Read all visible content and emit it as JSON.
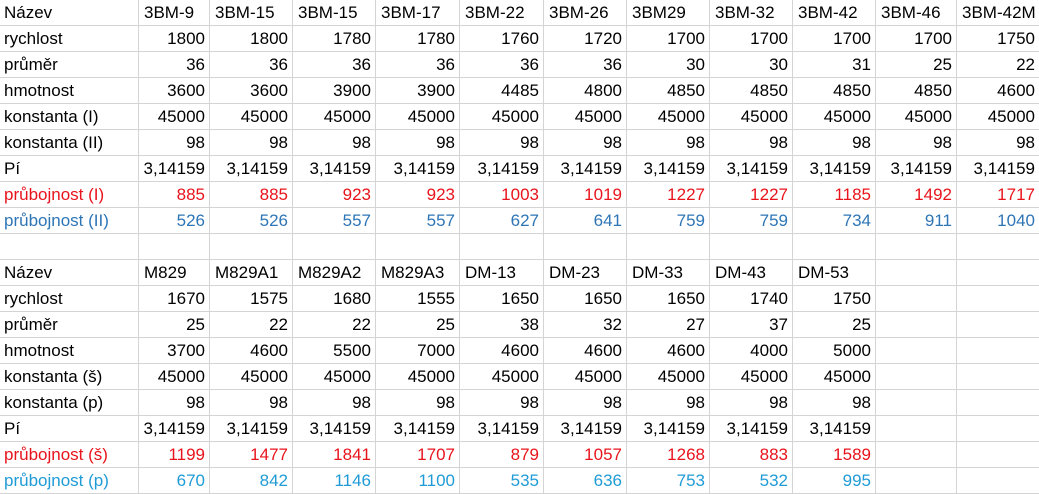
{
  "table1": {
    "header_label": "Název",
    "columns": [
      "3BM-9",
      "3BM-15",
      "3BM-15",
      "3BM-17",
      "3BM-22",
      "3BM-26",
      "3BM29",
      "3BM-32",
      "3BM-42",
      "3BM-46",
      "3BM-42M"
    ],
    "rows": [
      {
        "label": "rychlost",
        "values": [
          "1800",
          "1800",
          "1780",
          "1780",
          "1760",
          "1720",
          "1700",
          "1700",
          "1700",
          "1700",
          "1750"
        ],
        "style": "normal"
      },
      {
        "label": "průměr",
        "values": [
          "36",
          "36",
          "36",
          "36",
          "36",
          "36",
          "30",
          "30",
          "31",
          "25",
          "22"
        ],
        "style": "normal"
      },
      {
        "label": "hmotnost",
        "values": [
          "3600",
          "3600",
          "3900",
          "3900",
          "4485",
          "4800",
          "4850",
          "4850",
          "4850",
          "4850",
          "4600"
        ],
        "style": "normal"
      },
      {
        "label": "konstanta (I)",
        "values": [
          "45000",
          "45000",
          "45000",
          "45000",
          "45000",
          "45000",
          "45000",
          "45000",
          "45000",
          "45000",
          "45000"
        ],
        "style": "normal"
      },
      {
        "label": "konstanta (II)",
        "values": [
          "98",
          "98",
          "98",
          "98",
          "98",
          "98",
          "98",
          "98",
          "98",
          "98",
          "98"
        ],
        "style": "normal"
      },
      {
        "label": "Pí",
        "values": [
          "3,14159",
          "3,14159",
          "3,14159",
          "3,14159",
          "3,14159",
          "3,14159",
          "3,14159",
          "3,14159",
          "3,14159",
          "3,14159",
          "3,14159"
        ],
        "style": "normal"
      },
      {
        "label": "průbojnost (I)",
        "values": [
          "885",
          "885",
          "923",
          "923",
          "1003",
          "1019",
          "1227",
          "1227",
          "1185",
          "1492",
          "1717"
        ],
        "style": "red"
      },
      {
        "label": "průbojnost (II)",
        "values": [
          "526",
          "526",
          "557",
          "557",
          "627",
          "641",
          "759",
          "759",
          "734",
          "911",
          "1040"
        ],
        "style": "blue1"
      }
    ]
  },
  "table2": {
    "header_label": "Název",
    "columns": [
      "M829",
      "M829A1",
      "M829A2",
      "M829A3",
      "DM-13",
      "DM-23",
      "DM-33",
      "DM-43",
      "DM-53"
    ],
    "rows": [
      {
        "label": "rychlost",
        "values": [
          "1670",
          "1575",
          "1680",
          "1555",
          "1650",
          "1650",
          "1650",
          "1740",
          "1750"
        ],
        "style": "normal"
      },
      {
        "label": "průměr",
        "values": [
          "25",
          "22",
          "22",
          "25",
          "38",
          "32",
          "27",
          "37",
          "25"
        ],
        "style": "normal"
      },
      {
        "label": "hmotnost",
        "values": [
          "3700",
          "4600",
          "5500",
          "7000",
          "4600",
          "4600",
          "4600",
          "4000",
          "5000"
        ],
        "style": "normal"
      },
      {
        "label": "konstanta (š)",
        "values": [
          "45000",
          "45000",
          "45000",
          "45000",
          "45000",
          "45000",
          "45000",
          "45000",
          "45000"
        ],
        "style": "normal"
      },
      {
        "label": "konstanta (p)",
        "values": [
          "98",
          "98",
          "98",
          "98",
          "98",
          "98",
          "98",
          "98",
          "98"
        ],
        "style": "normal"
      },
      {
        "label": "Pí",
        "values": [
          "3,14159",
          "3,14159",
          "3,14159",
          "3,14159",
          "3,14159",
          "3,14159",
          "3,14159",
          "3,14159",
          "3,14159"
        ],
        "style": "normal"
      },
      {
        "label": "průbojnost (š)",
        "values": [
          "1199",
          "1477",
          "1841",
          "1707",
          "879",
          "1057",
          "1268",
          "883",
          "1589"
        ],
        "style": "red"
      },
      {
        "label": "průbojnost (p)",
        "values": [
          "670",
          "842",
          "1146",
          "1100",
          "535",
          "636",
          "753",
          "532",
          "995"
        ],
        "style": "blue2"
      }
    ]
  },
  "colors": {
    "gridline": "#d4d4d4",
    "red_text": "#e8141c",
    "blue_text_1": "#2e75b6",
    "blue_text_2": "#1f9bd6"
  }
}
